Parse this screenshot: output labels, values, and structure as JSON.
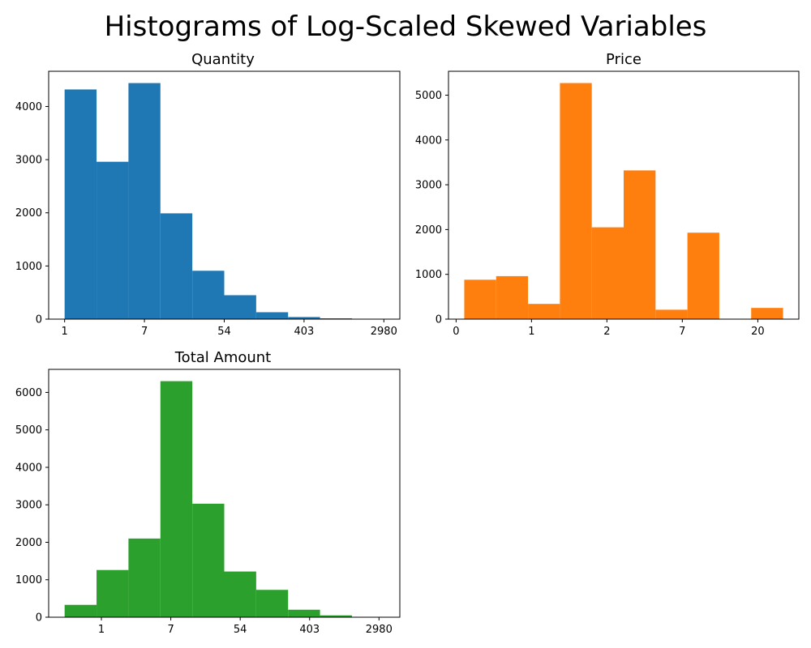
{
  "figure": {
    "title": "Histograms of Log-Scaled Skewed Variables"
  },
  "chart_data": [
    {
      "type": "bar",
      "title": "Quantity",
      "color": "#1f77b4",
      "bins_log": [
        [
          0,
          0.8
        ],
        [
          0.8,
          1.6
        ],
        [
          1.6,
          2.4
        ],
        [
          2.4,
          3.2
        ],
        [
          3.2,
          4.0
        ],
        [
          4.0,
          4.8
        ],
        [
          4.8,
          5.6
        ],
        [
          5.6,
          6.4
        ],
        [
          6.4,
          7.2
        ],
        [
          7.2,
          8.0
        ]
      ],
      "values": [
        4320,
        2960,
        4440,
        1990,
        910,
        450,
        130,
        40,
        15,
        5
      ],
      "xticks": {
        "positions_log": [
          0,
          2,
          4,
          6,
          8
        ],
        "labels": [
          "1",
          "7",
          "54",
          "403",
          "2980"
        ]
      },
      "xlim": [
        -0.4,
        8.4
      ],
      "yticks": [
        0,
        1000,
        2000,
        3000,
        4000
      ],
      "ylim": [
        0,
        4662
      ]
    },
    {
      "type": "bar",
      "title": "Price",
      "color": "#ff7f0e",
      "bins_log": [
        [
          0.075,
          0.368
        ],
        [
          0.368,
          0.661
        ],
        [
          0.661,
          0.954
        ],
        [
          0.954,
          1.247
        ],
        [
          1.247,
          1.54
        ],
        [
          1.54,
          1.833
        ],
        [
          1.833,
          2.126
        ],
        [
          2.126,
          2.419
        ],
        [
          2.419,
          2.712
        ],
        [
          2.712,
          3.005
        ]
      ],
      "values": [
        880,
        960,
        340,
        5270,
        2050,
        3320,
        210,
        1930,
        0,
        250
      ],
      "xticks": {
        "positions_log": [
          0,
          0.693,
          1.386,
          2.079,
          2.773
        ],
        "labels": [
          "0",
          "1",
          "2",
          "7",
          "20"
        ]
      },
      "xlim": [
        -0.07,
        3.15
      ],
      "yticks": [
        0,
        1000,
        2000,
        3000,
        4000,
        5000
      ],
      "ylim": [
        0,
        5533
      ]
    },
    {
      "type": "bar",
      "title": "Total Amount",
      "color": "#2ca02c",
      "bins_log": [
        [
          -1.06,
          -0.14
        ],
        [
          -0.14,
          0.78
        ],
        [
          0.78,
          1.7
        ],
        [
          1.7,
          2.62
        ],
        [
          2.62,
          3.54
        ],
        [
          3.54,
          4.46
        ],
        [
          4.46,
          5.38
        ],
        [
          5.38,
          6.3
        ],
        [
          6.3,
          7.22
        ],
        [
          7.22,
          8.14
        ]
      ],
      "values": [
        330,
        1260,
        2100,
        6300,
        3030,
        1220,
        730,
        200,
        50,
        10
      ],
      "xticks": {
        "positions_log": [
          0,
          2,
          4,
          6,
          8
        ],
        "labels": [
          "1",
          "7",
          "54",
          "403",
          "2980"
        ]
      },
      "xlim": [
        -1.52,
        8.6
      ],
      "yticks": [
        0,
        1000,
        2000,
        3000,
        4000,
        5000,
        6000
      ],
      "ylim": [
        0,
        6615
      ]
    }
  ]
}
